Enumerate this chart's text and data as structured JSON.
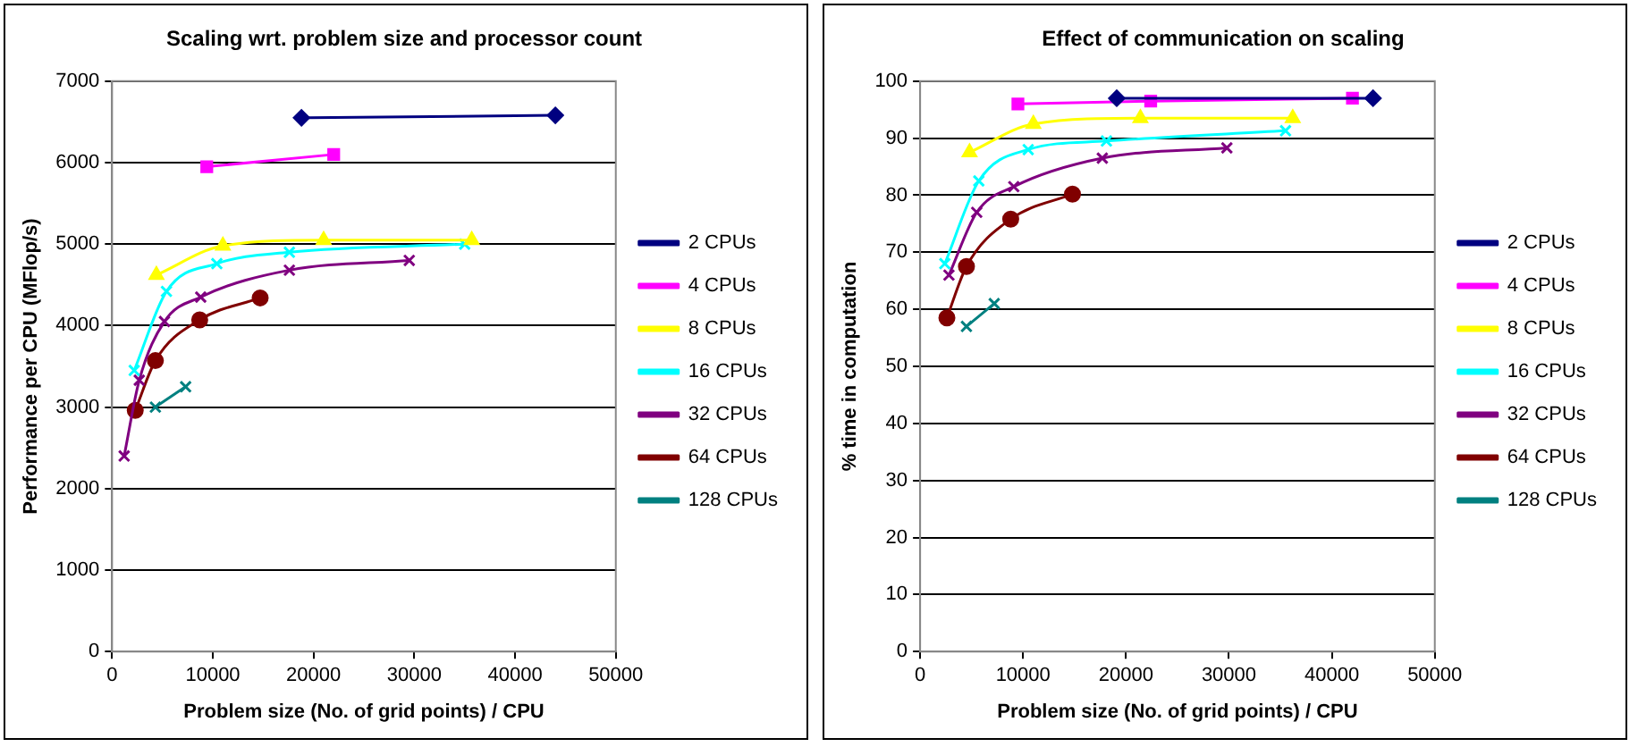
{
  "chart_data": [
    {
      "type": "line",
      "title": "Scaling wrt. problem size and processor count",
      "xlabel": "Problem size (No. of grid points) / CPU",
      "ylabel": "Performance per CPU (MFlop/s)",
      "xlim": [
        0,
        50000
      ],
      "xticks": [
        0,
        10000,
        20000,
        30000,
        40000,
        50000
      ],
      "ylim": [
        0,
        7000
      ],
      "yticks": [
        0,
        1000,
        2000,
        3000,
        4000,
        5000,
        6000,
        7000
      ],
      "grid": "y",
      "legend": "right",
      "series": [
        {
          "name": "2 CPUs",
          "color": "#000080",
          "marker": "diamond",
          "x": [
            18800,
            44000
          ],
          "values": [
            6550,
            6580
          ]
        },
        {
          "name": "4 CPUs",
          "color": "#ff00ff",
          "marker": "square",
          "x": [
            9400,
            22000
          ],
          "values": [
            5950,
            6100
          ]
        },
        {
          "name": "8 CPUs",
          "color": "#ffff00",
          "marker": "triangle",
          "x": [
            4400,
            11000,
            21000,
            35700
          ],
          "values": [
            4620,
            4980,
            5050,
            5050
          ]
        },
        {
          "name": "16 CPUs",
          "color": "#00ffff",
          "marker": "cross",
          "x": [
            2200,
            5400,
            10400,
            17600,
            35000
          ],
          "values": [
            3450,
            4420,
            4760,
            4900,
            5000
          ]
        },
        {
          "name": "32 CPUs",
          "color": "#800080",
          "marker": "cross",
          "x": [
            1200,
            2700,
            5200,
            8800,
            17600,
            29500
          ],
          "values": [
            2400,
            3330,
            4050,
            4350,
            4680,
            4800
          ]
        },
        {
          "name": "64 CPUs",
          "color": "#800000",
          "marker": "circle",
          "x": [
            2300,
            4300,
            8700,
            14700
          ],
          "values": [
            2960,
            3570,
            4070,
            4340
          ]
        },
        {
          "name": "128 CPUs",
          "color": "#008080",
          "marker": "cross",
          "x": [
            4300,
            7300
          ],
          "values": [
            3000,
            3250
          ]
        }
      ]
    },
    {
      "type": "line",
      "title": "Effect of communication on scaling",
      "xlabel": "Problem size (No. of grid points) / CPU",
      "ylabel": "% time in computation",
      "xlim": [
        0,
        50000
      ],
      "xticks": [
        0,
        10000,
        20000,
        30000,
        40000,
        50000
      ],
      "ylim": [
        0,
        100
      ],
      "yticks": [
        0,
        10,
        20,
        30,
        40,
        50,
        60,
        70,
        80,
        90,
        100
      ],
      "grid": "y",
      "legend": "right",
      "series": [
        {
          "name": "2 CPUs",
          "color": "#000080",
          "marker": "diamond",
          "x": [
            19100,
            44000
          ],
          "values": [
            97,
            97
          ]
        },
        {
          "name": "4 CPUs",
          "color": "#ff00ff",
          "marker": "square",
          "x": [
            9500,
            22400,
            42000
          ],
          "values": [
            96,
            96.5,
            97
          ]
        },
        {
          "name": "8 CPUs",
          "color": "#ffff00",
          "marker": "triangle",
          "x": [
            4800,
            11000,
            21400,
            36200
          ],
          "values": [
            87.5,
            92.5,
            93.5,
            93.5
          ]
        },
        {
          "name": "16 CPUs",
          "color": "#00ffff",
          "marker": "cross",
          "x": [
            2400,
            5700,
            10500,
            18100,
            35500
          ],
          "values": [
            68,
            82.5,
            88,
            89.5,
            91.3
          ]
        },
        {
          "name": "32 CPUs",
          "color": "#800080",
          "marker": "cross",
          "x": [
            2800,
            5500,
            9100,
            17700,
            29800
          ],
          "values": [
            66,
            77,
            81.5,
            86.5,
            88.3
          ]
        },
        {
          "name": "64 CPUs",
          "color": "#800000",
          "marker": "circle",
          "x": [
            2600,
            4500,
            8800,
            14800
          ],
          "values": [
            58.5,
            67.5,
            75.8,
            80.2
          ]
        },
        {
          "name": "128 CPUs",
          "color": "#008080",
          "marker": "cross",
          "x": [
            4500,
            7200
          ],
          "values": [
            57,
            61
          ]
        }
      ]
    }
  ]
}
